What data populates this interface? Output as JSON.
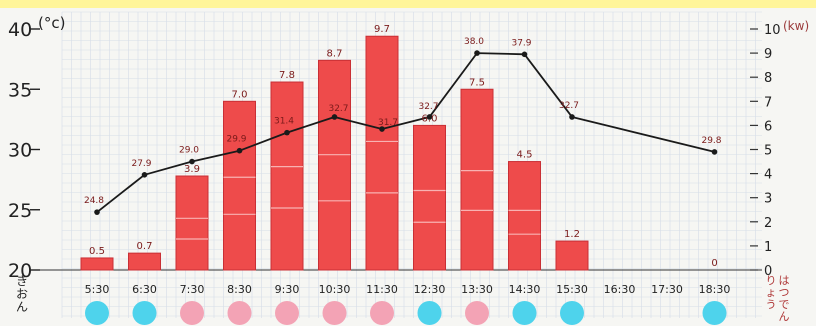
{
  "chart_data": {
    "type": "bar",
    "categories": [
      "5:30",
      "6:30",
      "7:30",
      "8:30",
      "9:30",
      "10:30",
      "11:30",
      "12:30",
      "13:30",
      "14:30",
      "15:30",
      "16:30",
      "17:30",
      "18:30"
    ],
    "series": [
      {
        "axis": "right",
        "chart_type": "bar",
        "values": [
          0.5,
          0.7,
          3.9,
          7.0,
          7.8,
          8.7,
          9.7,
          6.0,
          7.5,
          4.5,
          1.2,
          null,
          null,
          0
        ]
      },
      {
        "axis": "left",
        "chart_type": "line",
        "values": [
          24.8,
          27.9,
          29.0,
          29.9,
          31.4,
          32.7,
          31.7,
          32.7,
          38.0,
          37.9,
          32.7,
          null,
          null,
          29.8
        ]
      }
    ],
    "bar_labels": [
      "0.5",
      "0.7",
      "3.9",
      "7.0",
      "7.8",
      "8.7",
      "9.7",
      "6.0",
      "7.5",
      "4.5",
      "1.2",
      "",
      "",
      "0"
    ],
    "line_labels": [
      "24.8",
      "27.9",
      "29.0",
      "29.9",
      "31.4",
      "32.7",
      "31.7",
      "32.7",
      "38.0",
      "37.9",
      "32.7",
      "",
      "",
      "29.8"
    ],
    "left_axis": {
      "label": "(°c)",
      "ticks": [
        "40",
        "35",
        "30",
        "25",
        "20"
      ],
      "ylim": [
        20,
        40
      ]
    },
    "right_axis": {
      "label": "(kw)",
      "ticks": [
        "10",
        "9",
        "8",
        "7",
        "6",
        "5",
        "4",
        "3",
        "2",
        "1",
        "0"
      ],
      "ylim": [
        0,
        10
      ]
    },
    "xlabel_left": "きおん",
    "xlabel_right": "はつでんりょう",
    "weather": [
      "blue",
      "blue",
      "pink",
      "pink",
      "pink",
      "pink",
      "pink",
      "blue",
      "pink",
      "blue",
      "blue",
      "",
      "",
      "blue"
    ],
    "colors": {
      "bar": "#ee4b4b",
      "bar_stroke": "#c92f35",
      "line": "#1a1a1a",
      "grid": "#d5dde8",
      "banner": "#fff59a",
      "sun_pink": "#f3a3b5",
      "cloud_blue": "#4ed3ec",
      "bar_label": "#7a1a1a"
    },
    "grid": true,
    "legend": "none"
  }
}
